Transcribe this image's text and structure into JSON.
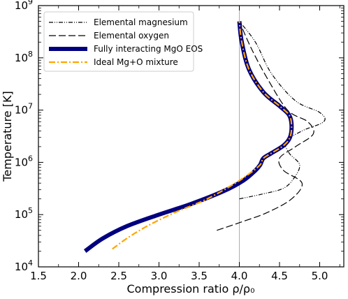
{
  "chart_data": {
    "type": "line",
    "xlabel": "Compression ratio ρ/ρ₀",
    "ylabel": "Temperature [K]",
    "xlim": [
      1.5,
      5.3
    ],
    "ylim": [
      10000,
      1000000000
    ],
    "yscale": "log",
    "x_ticks": [
      "1.5",
      "2.0",
      "2.5",
      "3.0",
      "3.5",
      "4.0",
      "4.5",
      "5.0"
    ],
    "y_ticks": [
      {
        "value": 10000,
        "base": "10",
        "exp": "4"
      },
      {
        "value": 100000,
        "base": "10",
        "exp": "5"
      },
      {
        "value": 1000000,
        "base": "10",
        "exp": "6"
      },
      {
        "value": 10000000,
        "base": "10",
        "exp": "7"
      },
      {
        "value": 100000000,
        "base": "10",
        "exp": "8"
      },
      {
        "value": 1000000000,
        "base": "10",
        "exp": "9"
      }
    ],
    "reference_line_x": 4.0,
    "legend_position": "top-left",
    "series": [
      {
        "name": "Elemental magnesium",
        "style": "dash-dot-dot",
        "color": "#000000",
        "x": [
          4.0,
          4.3,
          4.55,
          4.68,
          4.75,
          4.62,
          4.58,
          4.78,
          5.05,
          5.0,
          4.7,
          4.4,
          4.2,
          4.0
        ],
        "y": [
          200000,
          250000,
          320000,
          500000,
          900000,
          1500000,
          2500000,
          4000000,
          6000000,
          9000000,
          15000000,
          50000000,
          200000000,
          500000000
        ]
      },
      {
        "name": "Elemental oxygen",
        "style": "long-dash",
        "color": "#000000",
        "x": [
          3.72,
          4.0,
          4.35,
          4.65,
          4.78,
          4.55,
          4.5,
          4.7,
          4.92,
          4.85,
          4.6,
          4.35,
          4.15,
          4.0
        ],
        "y": [
          50000,
          70000,
          110000,
          200000,
          400000,
          700000,
          1200000,
          2000000,
          3500000,
          6000000,
          10000000,
          40000000,
          150000000,
          500000000
        ]
      },
      {
        "name": "Fully interacting MgO EOS",
        "style": "thick-solid",
        "color": "#00007f",
        "x": [
          2.08,
          2.3,
          2.6,
          3.0,
          3.4,
          3.8,
          4.05,
          4.2,
          4.26,
          4.3,
          4.4,
          4.55,
          4.63,
          4.65,
          4.62,
          4.5,
          4.3,
          4.12,
          4.03,
          4.0
        ],
        "y": [
          20000,
          35000,
          60000,
          100000,
          160000,
          280000,
          450000,
          700000,
          900000,
          1200000,
          1500000,
          2100000,
          3000000,
          5000000,
          8000000,
          12000000,
          22000000,
          60000000,
          200000000,
          500000000
        ]
      },
      {
        "name": "Ideal Mg+O mixture",
        "style": "dash-dot",
        "color": "#ffa500",
        "x": [
          2.42,
          2.6,
          2.85,
          3.2,
          3.6,
          3.95,
          4.15,
          4.26,
          4.3,
          4.4,
          4.55,
          4.63,
          4.65,
          4.62,
          4.5,
          4.3,
          4.12,
          4.03,
          4.0
        ],
        "y": [
          22000,
          35000,
          60000,
          110000,
          200000,
          400000,
          650000,
          900000,
          1200000,
          1500000,
          2100000,
          3000000,
          5000000,
          8000000,
          12000000,
          22000000,
          60000000,
          200000000,
          500000000
        ]
      }
    ]
  }
}
